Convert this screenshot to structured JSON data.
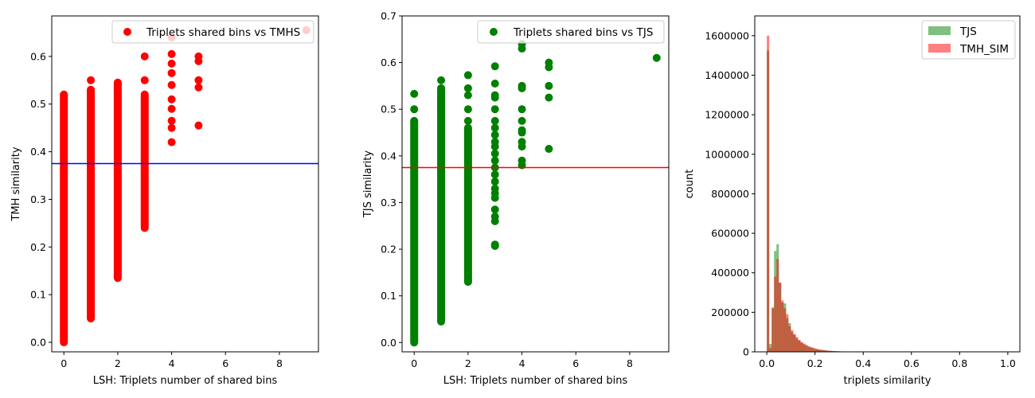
{
  "chart_data": [
    {
      "type": "scatter",
      "xlabel": "LSH: Triplets number of shared bins",
      "ylabel": "TMH similarity",
      "xlim": [
        -0.45,
        9.45
      ],
      "ylim": [
        -0.02,
        0.685
      ],
      "xticks": [
        0,
        2,
        4,
        6,
        8
      ],
      "yticks": [
        0.0,
        0.1,
        0.2,
        0.3,
        0.4,
        0.5,
        0.6
      ],
      "ytick_labels": [
        "0.0",
        "0.1",
        "0.2",
        "0.3",
        "0.4",
        "0.5",
        "0.6"
      ],
      "legend_position": "top-right",
      "threshold": {
        "y": 0.375,
        "color": "#0000ff"
      },
      "series": [
        {
          "name": "Triplets shared bins vs TMHS",
          "color": "#ff0000",
          "ranges": [
            {
              "x": 0,
              "ymin": 0.0,
              "ymax": 0.52
            },
            {
              "x": 1,
              "ymin": 0.05,
              "ymax": 0.53
            },
            {
              "x": 2,
              "ymin": 0.135,
              "ymax": 0.545
            },
            {
              "x": 3,
              "ymin": 0.24,
              "ymax": 0.52
            }
          ],
          "points": [
            {
              "x": 1,
              "y": 0.55
            },
            {
              "x": 2,
              "y": 0.54
            },
            {
              "x": 3,
              "y": 0.6
            },
            {
              "x": 3,
              "y": 0.55
            },
            {
              "x": 4,
              "y": 0.64
            },
            {
              "x": 4,
              "y": 0.605
            },
            {
              "x": 4,
              "y": 0.585
            },
            {
              "x": 4,
              "y": 0.565
            },
            {
              "x": 4,
              "y": 0.54
            },
            {
              "x": 4,
              "y": 0.51
            },
            {
              "x": 4,
              "y": 0.49
            },
            {
              "x": 4,
              "y": 0.465
            },
            {
              "x": 4,
              "y": 0.45
            },
            {
              "x": 4,
              "y": 0.42
            },
            {
              "x": 5,
              "y": 0.6
            },
            {
              "x": 5,
              "y": 0.59
            },
            {
              "x": 5,
              "y": 0.55
            },
            {
              "x": 5,
              "y": 0.535
            },
            {
              "x": 5,
              "y": 0.455
            },
            {
              "x": 9,
              "y": 0.655
            }
          ]
        }
      ]
    },
    {
      "type": "scatter",
      "xlabel": "LSH: Triplets number of shared bins",
      "ylabel": "TJS similarity",
      "xlim": [
        -0.45,
        9.45
      ],
      "ylim": [
        -0.02,
        0.7
      ],
      "xticks": [
        0,
        2,
        4,
        6,
        8
      ],
      "yticks": [
        0.0,
        0.1,
        0.2,
        0.3,
        0.4,
        0.5,
        0.6,
        0.7
      ],
      "ytick_labels": [
        "0.0",
        "0.1",
        "0.2",
        "0.3",
        "0.4",
        "0.5",
        "0.6",
        "0.7"
      ],
      "legend_position": "top-right",
      "threshold": {
        "y": 0.375,
        "color": "#ff0000"
      },
      "series": [
        {
          "name": "Triplets shared bins vs TJS",
          "color": "#008000",
          "ranges": [
            {
              "x": 0,
              "ymin": 0.0,
              "ymax": 0.475
            },
            {
              "x": 1,
              "ymin": 0.045,
              "ymax": 0.545
            },
            {
              "x": 2,
              "ymin": 0.13,
              "ymax": 0.46
            }
          ],
          "points": [
            {
              "x": 0,
              "y": 0.533
            },
            {
              "x": 0,
              "y": 0.5
            },
            {
              "x": 1,
              "y": 0.562
            },
            {
              "x": 1,
              "y": 0.525
            },
            {
              "x": 1,
              "y": 0.5
            },
            {
              "x": 2,
              "y": 0.573
            },
            {
              "x": 2,
              "y": 0.545
            },
            {
              "x": 2,
              "y": 0.53
            },
            {
              "x": 2,
              "y": 0.5
            },
            {
              "x": 2,
              "y": 0.475
            },
            {
              "x": 3,
              "y": 0.592
            },
            {
              "x": 3,
              "y": 0.555
            },
            {
              "x": 3,
              "y": 0.53
            },
            {
              "x": 3,
              "y": 0.525
            },
            {
              "x": 3,
              "y": 0.5
            },
            {
              "x": 3,
              "y": 0.475
            },
            {
              "x": 3,
              "y": 0.46
            },
            {
              "x": 3,
              "y": 0.445
            },
            {
              "x": 3,
              "y": 0.43
            },
            {
              "x": 3,
              "y": 0.42
            },
            {
              "x": 3,
              "y": 0.405
            },
            {
              "x": 3,
              "y": 0.39
            },
            {
              "x": 3,
              "y": 0.375
            },
            {
              "x": 3,
              "y": 0.36
            },
            {
              "x": 3,
              "y": 0.345
            },
            {
              "x": 3,
              "y": 0.33
            },
            {
              "x": 3,
              "y": 0.32
            },
            {
              "x": 3,
              "y": 0.31
            },
            {
              "x": 3,
              "y": 0.285
            },
            {
              "x": 3,
              "y": 0.27
            },
            {
              "x": 3,
              "y": 0.26
            },
            {
              "x": 3,
              "y": 0.21
            },
            {
              "x": 3,
              "y": 0.207
            },
            {
              "x": 4,
              "y": 0.64
            },
            {
              "x": 4,
              "y": 0.63
            },
            {
              "x": 4,
              "y": 0.55
            },
            {
              "x": 4,
              "y": 0.545
            },
            {
              "x": 4,
              "y": 0.5
            },
            {
              "x": 4,
              "y": 0.475
            },
            {
              "x": 4,
              "y": 0.455
            },
            {
              "x": 4,
              "y": 0.45
            },
            {
              "x": 4,
              "y": 0.43
            },
            {
              "x": 4,
              "y": 0.42
            },
            {
              "x": 4,
              "y": 0.39
            },
            {
              "x": 4,
              "y": 0.38
            },
            {
              "x": 5,
              "y": 0.6
            },
            {
              "x": 5,
              "y": 0.59
            },
            {
              "x": 5,
              "y": 0.55
            },
            {
              "x": 5,
              "y": 0.525
            },
            {
              "x": 5,
              "y": 0.415
            },
            {
              "x": 9,
              "y": 0.61
            }
          ]
        }
      ]
    },
    {
      "type": "histogram",
      "xlabel": "triplets similarity",
      "ylabel": "count",
      "xlim": [
        -0.05,
        1.05
      ],
      "ylim": [
        0,
        1700000
      ],
      "xticks": [
        0.0,
        0.2,
        0.4,
        0.6,
        0.8,
        1.0
      ],
      "xtick_labels": [
        "0.0",
        "0.2",
        "0.4",
        "0.6",
        "0.8",
        "1.0"
      ],
      "yticks": [
        0,
        200000,
        400000,
        600000,
        800000,
        1000000,
        1200000,
        1400000,
        1600000
      ],
      "ytick_labels": [
        "0",
        "200000",
        "400000",
        "600000",
        "800000",
        "1000000",
        "1200000",
        "1400000",
        "1600000"
      ],
      "legend_position": "top-right",
      "bin_width": 0.01,
      "series": [
        {
          "name": "TJS",
          "color": "#008000",
          "alpha": 0.5,
          "bin_start": 0.0,
          "counts": [
            1525000,
            40000,
            225000,
            510000,
            545000,
            350000,
            250000,
            245000,
            170000,
            145000,
            100000,
            85000,
            68000,
            58000,
            46000,
            38000,
            31000,
            25000,
            21000,
            17000,
            14000,
            12000,
            10000,
            8500,
            7000,
            6000,
            5000,
            4200,
            3500,
            3000,
            2500,
            2100,
            1800,
            1500,
            1200,
            1000,
            800,
            650,
            500,
            400,
            300,
            200,
            150,
            100,
            80,
            60,
            40,
            30,
            20,
            10
          ]
        },
        {
          "name": "TMH_SIM",
          "color": "#ff0000",
          "alpha": 0.5,
          "bin_start": 0.0,
          "counts": [
            1600000,
            20000,
            220000,
            380000,
            470000,
            350000,
            260000,
            220000,
            190000,
            130000,
            110000,
            90000,
            75000,
            60000,
            50000,
            42000,
            35000,
            28000,
            24000,
            20000,
            16000,
            13000,
            11000,
            9000,
            7500,
            6000,
            5000,
            4000,
            3400,
            2800,
            2300,
            1900,
            1500,
            1200,
            1000,
            800,
            600,
            500,
            400,
            300,
            200,
            150,
            100,
            80,
            60,
            40,
            30,
            20,
            10,
            5
          ]
        }
      ]
    }
  ]
}
